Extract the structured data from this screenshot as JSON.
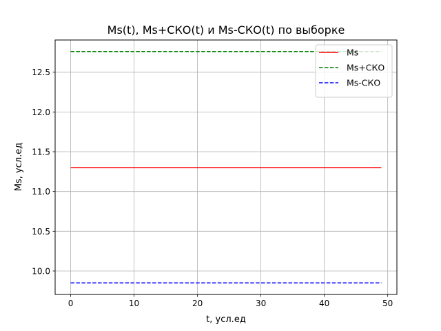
{
  "chart_data": {
    "type": "line",
    "title": "Ms(t),  Ms+СКО(t) и Ms-СКО(t) по выборке",
    "xlabel": "t, усл.ед",
    "ylabel": "Ms, усл.ед",
    "xlim": [
      -2.45,
      51.45
    ],
    "ylim": [
      9.705,
      12.905
    ],
    "xticks": [
      0,
      10,
      20,
      30,
      40,
      50
    ],
    "xtick_labels": [
      "0",
      "10",
      "20",
      "30",
      "40",
      "50"
    ],
    "yticks": [
      10.0,
      10.5,
      11.0,
      11.5,
      12.0,
      12.5
    ],
    "ytick_labels": [
      "10.0",
      "10.5",
      "11.0",
      "11.5",
      "12.0",
      "12.5"
    ],
    "grid": true,
    "legend_position": "top-right",
    "series": [
      {
        "name": "Ms",
        "x": [
          0,
          49
        ],
        "y": [
          11.3,
          11.3
        ],
        "color": "#ff0000",
        "style": "solid"
      },
      {
        "name": "Ms+СКО",
        "x": [
          0,
          49
        ],
        "y": [
          12.76,
          12.76
        ],
        "color": "#008000",
        "style": "dashed"
      },
      {
        "name": "Ms-СКО",
        "x": [
          0,
          49
        ],
        "y": [
          9.85,
          9.85
        ],
        "color": "#0000ff",
        "style": "dashed"
      }
    ]
  }
}
